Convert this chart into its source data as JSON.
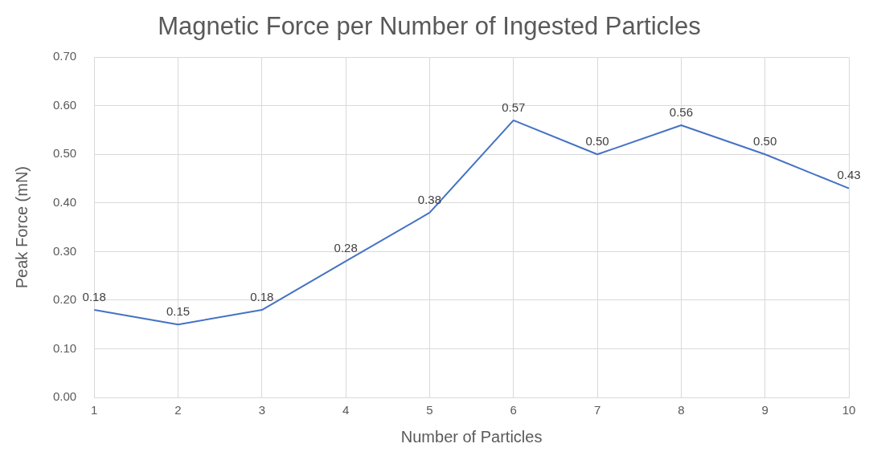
{
  "chart_data": {
    "type": "line",
    "title": "Magnetic Force per Number of Ingested Particles",
    "xlabel": "Number of Particles",
    "ylabel": "Peak Force (mN)",
    "categories": [
      "1",
      "2",
      "3",
      "4",
      "5",
      "6",
      "7",
      "8",
      "9",
      "10"
    ],
    "series": [
      {
        "color": "#4472c4",
        "values": [
          0.18,
          0.15,
          0.18,
          0.28,
          0.38,
          0.57,
          0.5,
          0.56,
          0.5,
          0.43
        ],
        "value_labels": [
          "0.18",
          "0.15",
          "0.18",
          "0.28",
          "0.38",
          "0.57",
          "0.50",
          "0.56",
          "0.50",
          "0.43"
        ]
      }
    ],
    "ylim": [
      0,
      0.7
    ],
    "yticks": [
      {
        "value": 0,
        "label": "0.00"
      },
      {
        "value": 0.1,
        "label": "0.10"
      },
      {
        "value": 0.2,
        "label": "0.20"
      },
      {
        "value": 0.3,
        "label": "0.30"
      },
      {
        "value": 0.4,
        "label": "0.40"
      },
      {
        "value": 0.5,
        "label": "0.50"
      },
      {
        "value": 0.6,
        "label": "0.60"
      },
      {
        "value": 0.7,
        "label": "0.70"
      }
    ],
    "grid": true,
    "legend": false,
    "marker": "none",
    "line_style": "solid"
  }
}
